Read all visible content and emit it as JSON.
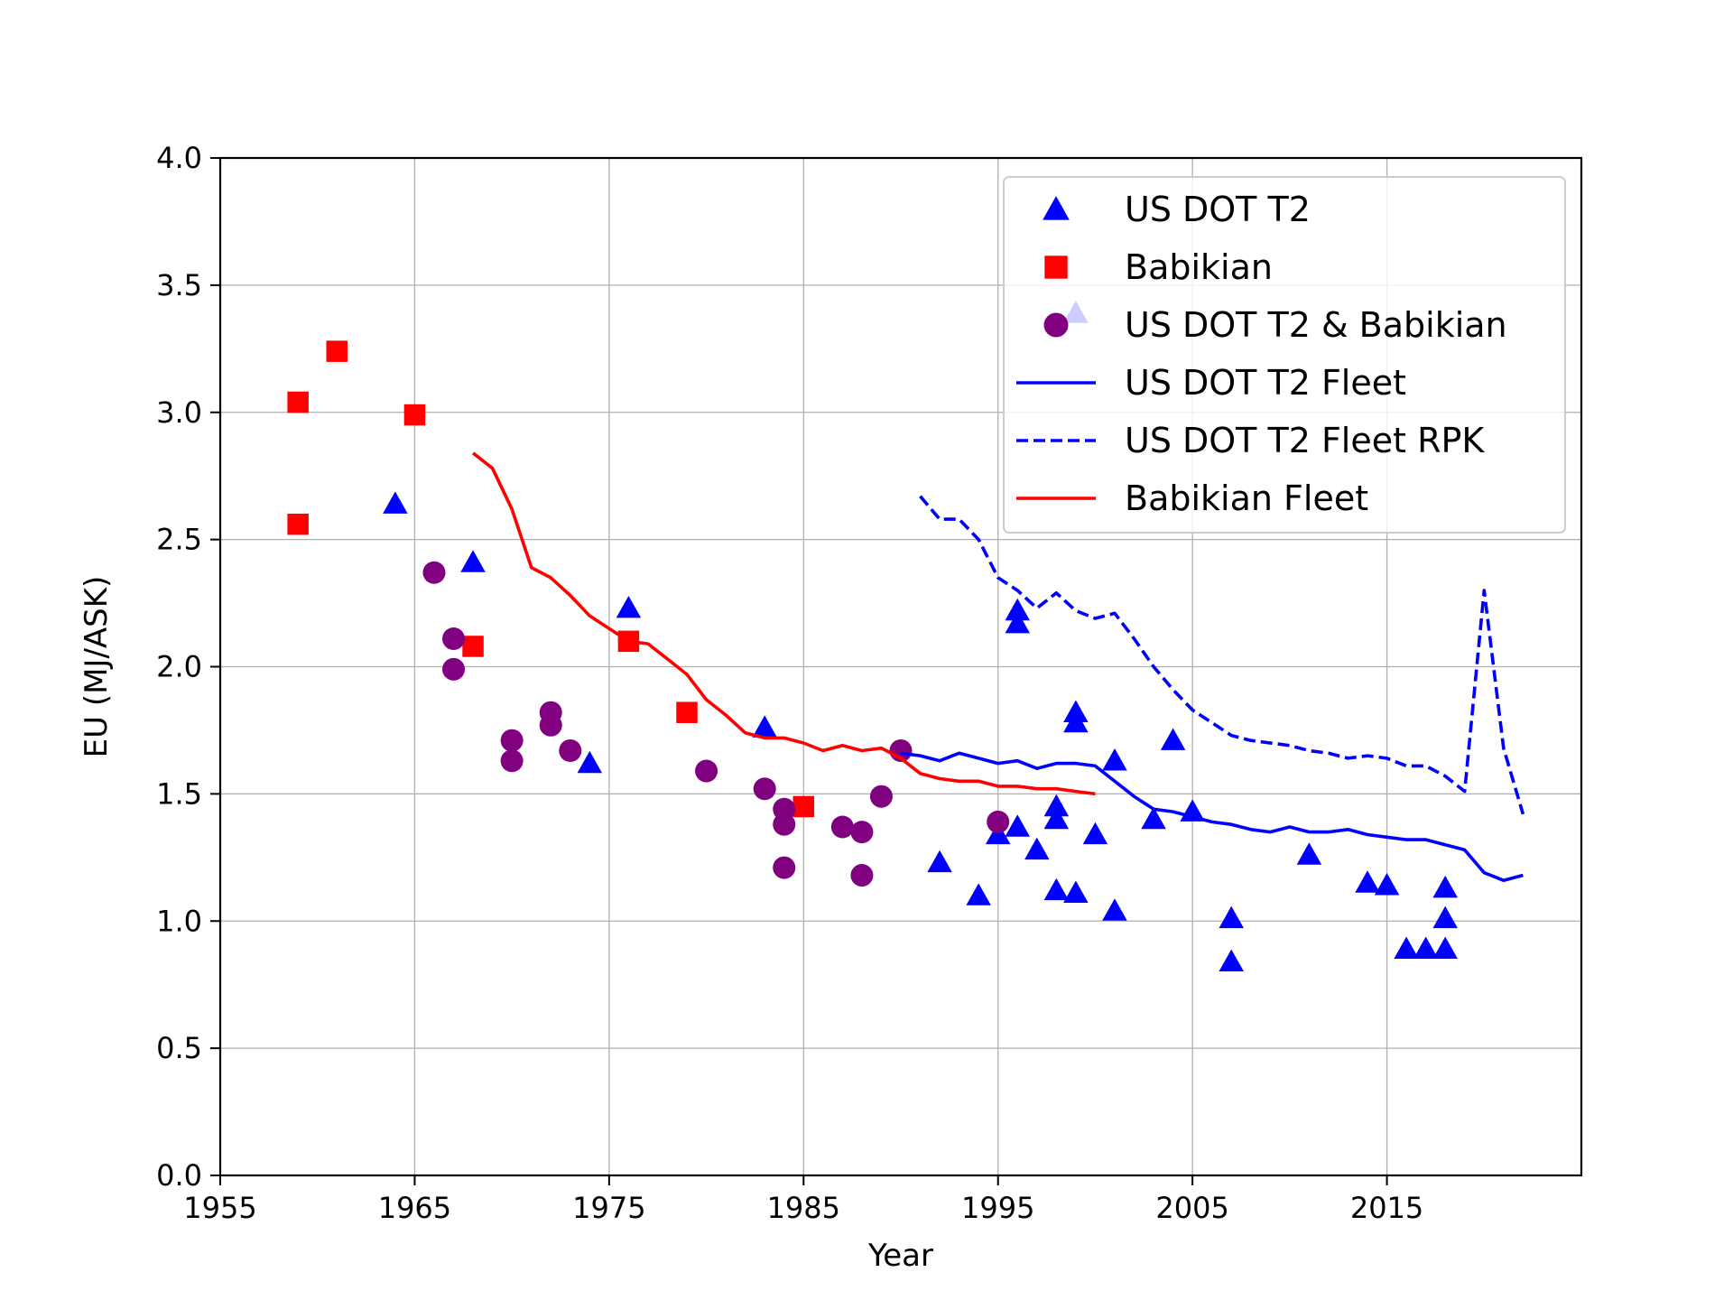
{
  "chart_data": {
    "type": "scatter",
    "xlabel": "Year",
    "ylabel": "EU (MJ/ASK)",
    "xlim": [
      1955,
      2025
    ],
    "ylim": [
      0.0,
      4.0
    ],
    "xticks": [
      1955,
      1965,
      1975,
      1985,
      1995,
      2005,
      2015
    ],
    "xtick_labels": [
      "1955",
      "1965",
      "1975",
      "1985",
      "1995",
      "2005",
      "2015"
    ],
    "yticks": [
      0.0,
      0.5,
      1.0,
      1.5,
      2.0,
      2.5,
      3.0,
      3.5,
      4.0
    ],
    "ytick_labels": [
      "0.0",
      "0.5",
      "1.0",
      "1.5",
      "2.0",
      "2.5",
      "3.0",
      "3.5",
      "4.0"
    ],
    "grid": true,
    "legend_position": "top-right",
    "series": [
      {
        "name": "US DOT T2",
        "kind": "scatter",
        "marker": "triangle",
        "color": "#0000ff",
        "points": [
          [
            1964,
            2.64
          ],
          [
            1968,
            2.41
          ],
          [
            1974,
            1.62
          ],
          [
            1976,
            2.23
          ],
          [
            1983,
            1.76
          ],
          [
            1992,
            1.23
          ],
          [
            1994,
            1.1
          ],
          [
            1995,
            1.34
          ],
          [
            1996,
            1.37
          ],
          [
            1996,
            2.17
          ],
          [
            1996,
            2.22
          ],
          [
            1997,
            1.28
          ],
          [
            1998,
            1.12
          ],
          [
            1998,
            1.4
          ],
          [
            1998,
            1.45
          ],
          [
            1999,
            1.11
          ],
          [
            1999,
            1.78
          ],
          [
            1999,
            1.82
          ],
          [
            1999,
            3.39
          ],
          [
            2000,
            1.34
          ],
          [
            2001,
            1.04
          ],
          [
            2001,
            1.63
          ],
          [
            2003,
            1.4
          ],
          [
            2004,
            1.71
          ],
          [
            2005,
            1.43
          ],
          [
            2007,
            0.84
          ],
          [
            2007,
            1.01
          ],
          [
            2011,
            1.26
          ],
          [
            2014,
            1.15
          ],
          [
            2015,
            1.14
          ],
          [
            2016,
            0.89
          ],
          [
            2017,
            0.89
          ],
          [
            2018,
            0.89
          ],
          [
            2018,
            1.01
          ],
          [
            2018,
            1.13
          ]
        ]
      },
      {
        "name": "Babikian",
        "kind": "scatter",
        "marker": "square",
        "color": "#ff0000",
        "points": [
          [
            1959,
            3.04
          ],
          [
            1959,
            2.56
          ],
          [
            1961,
            3.24
          ],
          [
            1965,
            2.99
          ],
          [
            1968,
            2.08
          ],
          [
            1976,
            2.1
          ],
          [
            1979,
            1.82
          ],
          [
            1985,
            1.45
          ]
        ]
      },
      {
        "name": "US DOT T2 & Babikian",
        "kind": "scatter",
        "marker": "circle",
        "color": "#800080",
        "points": [
          [
            1966,
            2.37
          ],
          [
            1967,
            2.11
          ],
          [
            1967,
            1.99
          ],
          [
            1970,
            1.71
          ],
          [
            1970,
            1.63
          ],
          [
            1972,
            1.82
          ],
          [
            1972,
            1.77
          ],
          [
            1973,
            1.67
          ],
          [
            1980,
            1.59
          ],
          [
            1983,
            1.52
          ],
          [
            1984,
            1.44
          ],
          [
            1984,
            1.38
          ],
          [
            1984,
            1.21
          ],
          [
            1987,
            1.37
          ],
          [
            1988,
            1.35
          ],
          [
            1988,
            1.18
          ],
          [
            1989,
            1.49
          ],
          [
            1990,
            1.67
          ],
          [
            1995,
            1.39
          ]
        ]
      },
      {
        "name": "US DOT T2 Fleet",
        "kind": "line",
        "dash": "solid",
        "color": "#0000ff",
        "points": [
          [
            1990,
            1.66
          ],
          [
            1991,
            1.65
          ],
          [
            1992,
            1.63
          ],
          [
            1993,
            1.66
          ],
          [
            1994,
            1.64
          ],
          [
            1995,
            1.62
          ],
          [
            1996,
            1.63
          ],
          [
            1997,
            1.6
          ],
          [
            1998,
            1.62
          ],
          [
            1999,
            1.62
          ],
          [
            2000,
            1.61
          ],
          [
            2001,
            1.55
          ],
          [
            2002,
            1.49
          ],
          [
            2003,
            1.44
          ],
          [
            2004,
            1.43
          ],
          [
            2005,
            1.41
          ],
          [
            2006,
            1.39
          ],
          [
            2007,
            1.38
          ],
          [
            2008,
            1.36
          ],
          [
            2009,
            1.35
          ],
          [
            2010,
            1.37
          ],
          [
            2011,
            1.35
          ],
          [
            2012,
            1.35
          ],
          [
            2013,
            1.36
          ],
          [
            2014,
            1.34
          ],
          [
            2015,
            1.33
          ],
          [
            2016,
            1.32
          ],
          [
            2017,
            1.32
          ],
          [
            2018,
            1.3
          ],
          [
            2019,
            1.28
          ],
          [
            2020,
            1.19
          ],
          [
            2021,
            1.16
          ],
          [
            2022,
            1.18
          ]
        ]
      },
      {
        "name": "US DOT T2 Fleet RPK",
        "kind": "line",
        "dash": "dashed",
        "color": "#0000ff",
        "points": [
          [
            1991,
            2.67
          ],
          [
            1992,
            2.58
          ],
          [
            1993,
            2.58
          ],
          [
            1994,
            2.5
          ],
          [
            1995,
            2.35
          ],
          [
            1996,
            2.3
          ],
          [
            1997,
            2.23
          ],
          [
            1998,
            2.29
          ],
          [
            1999,
            2.22
          ],
          [
            2000,
            2.19
          ],
          [
            2001,
            2.21
          ],
          [
            2002,
            2.11
          ],
          [
            2003,
            2.0
          ],
          [
            2004,
            1.91
          ],
          [
            2005,
            1.83
          ],
          [
            2006,
            1.78
          ],
          [
            2007,
            1.73
          ],
          [
            2008,
            1.71
          ],
          [
            2009,
            1.7
          ],
          [
            2010,
            1.69
          ],
          [
            2011,
            1.67
          ],
          [
            2012,
            1.66
          ],
          [
            2013,
            1.64
          ],
          [
            2014,
            1.65
          ],
          [
            2015,
            1.64
          ],
          [
            2016,
            1.61
          ],
          [
            2017,
            1.61
          ],
          [
            2018,
            1.57
          ],
          [
            2019,
            1.51
          ],
          [
            2020,
            2.3
          ],
          [
            2021,
            1.68
          ],
          [
            2022,
            1.42
          ]
        ]
      },
      {
        "name": "Babikian Fleet",
        "kind": "line",
        "dash": "solid",
        "color": "#ff0000",
        "points": [
          [
            1968,
            2.84
          ],
          [
            1969,
            2.78
          ],
          [
            1970,
            2.62
          ],
          [
            1971,
            2.39
          ],
          [
            1972,
            2.35
          ],
          [
            1973,
            2.28
          ],
          [
            1974,
            2.2
          ],
          [
            1975,
            2.15
          ],
          [
            1976,
            2.1
          ],
          [
            1977,
            2.09
          ],
          [
            1978,
            2.03
          ],
          [
            1979,
            1.97
          ],
          [
            1980,
            1.87
          ],
          [
            1981,
            1.81
          ],
          [
            1982,
            1.74
          ],
          [
            1983,
            1.72
          ],
          [
            1984,
            1.72
          ],
          [
            1985,
            1.7
          ],
          [
            1986,
            1.67
          ],
          [
            1987,
            1.69
          ],
          [
            1988,
            1.67
          ],
          [
            1989,
            1.68
          ],
          [
            1990,
            1.64
          ],
          [
            1991,
            1.58
          ],
          [
            1992,
            1.56
          ],
          [
            1993,
            1.55
          ],
          [
            1994,
            1.55
          ],
          [
            1995,
            1.53
          ],
          [
            1996,
            1.53
          ],
          [
            1997,
            1.52
          ],
          [
            1998,
            1.52
          ],
          [
            1999,
            1.51
          ],
          [
            2000,
            1.5
          ]
        ]
      }
    ]
  }
}
